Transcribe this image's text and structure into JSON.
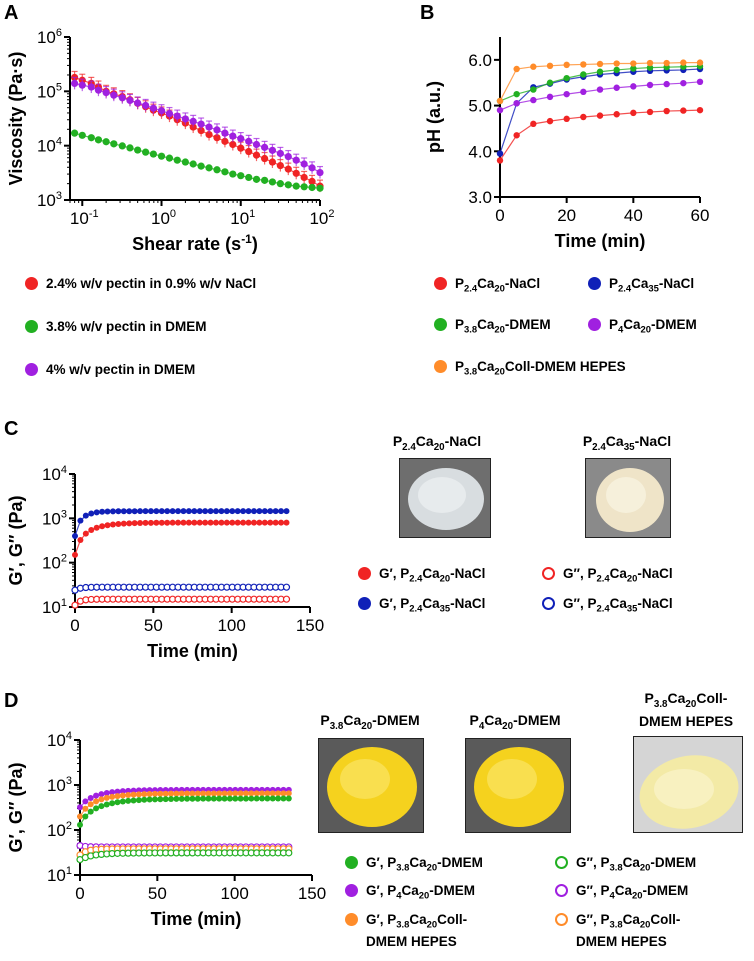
{
  "panels": {
    "A": "A",
    "B": "B",
    "C": "C",
    "D": "D"
  },
  "legend_a": [
    {
      "label": "2.4% w/v pectin in 0.9% w/v NaCl",
      "color": "#f02424"
    },
    {
      "label": "3.8% w/v pectin in DMEM",
      "color": "#22b022"
    },
    {
      "label": "4% w/v pectin in DMEM",
      "color": "#a020e0"
    }
  ],
  "legend_b": [
    {
      "pre": "P",
      "s1": "2.4",
      "mid": "Ca",
      "s2": "20",
      "post": "-NaCl",
      "color": "#f02424"
    },
    {
      "pre": "P",
      "s1": "2.4",
      "mid": "Ca",
      "s2": "35",
      "post": "-NaCl",
      "color": "#1020b8"
    },
    {
      "pre": "P",
      "s1": "3.8",
      "mid": "Ca",
      "s2": "20",
      "post": "-DMEM",
      "color": "#22b022"
    },
    {
      "pre": "P",
      "s1": "4",
      "mid": "Ca",
      "s2": "20",
      "post": "-DMEM",
      "color": "#a020e0"
    },
    {
      "pre": "P",
      "s1": "3.8",
      "mid": "Ca",
      "s2": "20",
      "post": "Coll-DMEM HEPES",
      "color": "#ff8c2a"
    }
  ],
  "legend_c": [
    {
      "prefix": "G′, ",
      "pre": "P",
      "s1": "2.4",
      "mid": "Ca",
      "s2": "20",
      "post": "-NaCl",
      "color": "#f02424",
      "filled": true
    },
    {
      "prefix": "G″, ",
      "pre": "P",
      "s1": "2.4",
      "mid": "Ca",
      "s2": "20",
      "post": "-NaCl",
      "color": "#f02424",
      "filled": false
    },
    {
      "prefix": "G′, ",
      "pre": "P",
      "s1": "2.4",
      "mid": "Ca",
      "s2": "35",
      "post": "-NaCl",
      "color": "#1020b8",
      "filled": true
    },
    {
      "prefix": "G″, ",
      "pre": "P",
      "s1": "2.4",
      "mid": "Ca",
      "s2": "35",
      "post": "-NaCl",
      "color": "#1020b8",
      "filled": false
    }
  ],
  "legend_d": [
    {
      "prefix": "G′, ",
      "pre": "P",
      "s1": "3.8",
      "mid": "Ca",
      "s2": "20",
      "post": "-DMEM",
      "line2": "",
      "color": "#22b022",
      "filled": true
    },
    {
      "prefix": "G″, ",
      "pre": "P",
      "s1": "3.8",
      "mid": "Ca",
      "s2": "20",
      "post": "-DMEM",
      "line2": "",
      "color": "#22b022",
      "filled": false
    },
    {
      "prefix": "G′, ",
      "pre": "P",
      "s1": "4",
      "mid": "Ca",
      "s2": "20",
      "post": "-DMEM",
      "line2": "",
      "color": "#a020e0",
      "filled": true
    },
    {
      "prefix": "G″, ",
      "pre": "P",
      "s1": "4",
      "mid": "Ca",
      "s2": "20",
      "post": "-DMEM",
      "line2": "",
      "color": "#a020e0",
      "filled": false
    },
    {
      "prefix": "G′, ",
      "pre": "P",
      "s1": "3.8",
      "mid": "Ca",
      "s2": "20",
      "post": "Coll-",
      "line2": "DMEM HEPES",
      "color": "#ff8c2a",
      "filled": true
    },
    {
      "prefix": "G″, ",
      "pre": "P",
      "s1": "3.8",
      "mid": "Ca",
      "s2": "20",
      "post": "Coll-",
      "line2": "DMEM HEPES",
      "color": "#ff8c2a",
      "filled": false
    }
  ],
  "photos_c": [
    {
      "pre": "P",
      "s1": "2.4",
      "mid": "Ca",
      "s2": "20",
      "post": "-NaCl",
      "line2": "",
      "color": "#d8dde0",
      "bg": "#6e6e6e"
    },
    {
      "pre": "P",
      "s1": "2.4",
      "mid": "Ca",
      "s2": "35",
      "post": "-NaCl",
      "line2": "",
      "color": "#efe4c8",
      "bg": "#8a8a8a"
    }
  ],
  "photos_d": [
    {
      "pre": "P",
      "s1": "3.8",
      "mid": "Ca",
      "s2": "20",
      "post": "-DMEM",
      "line2": "",
      "color": "#f5d21e",
      "bg": "#5a5a5a"
    },
    {
      "pre": "P",
      "s1": "4",
      "mid": "Ca",
      "s2": "20",
      "post": "-DMEM",
      "line2": "",
      "color": "#f5d21e",
      "bg": "#5a5a5a"
    },
    {
      "pre": "P",
      "s1": "3.8",
      "mid": "Ca",
      "s2": "20",
      "post": "Coll-",
      "line2": "DMEM HEPES",
      "color": "#f3eaa6",
      "bg": "#d5d5d5"
    }
  ],
  "chart_data": [
    {
      "id": "A",
      "type": "line",
      "xscale": "log",
      "yscale": "log",
      "title": "",
      "xlabel": "Shear rate (s",
      "xlabel_sup": "-1",
      "xlabel_end": ")",
      "ylabel": "Viscosity (Pa·s)",
      "xlim": [
        0.07,
        100
      ],
      "ylim": [
        1000,
        1000000
      ],
      "xticks": [
        {
          "v": 0.1,
          "b": "10",
          "e": "-1"
        },
        {
          "v": 1,
          "b": "10",
          "e": "0"
        },
        {
          "v": 10,
          "b": "10",
          "e": "1"
        },
        {
          "v": 100,
          "b": "10",
          "e": "2"
        }
      ],
      "yticks": [
        {
          "v": 1000,
          "b": "10",
          "e": "3"
        },
        {
          "v": 10000,
          "b": "10",
          "e": "4"
        },
        {
          "v": 100000,
          "b": "10",
          "e": "5"
        },
        {
          "v": 1000000,
          "b": "10",
          "e": "6"
        }
      ],
      "series": [
        {
          "name": "2.4% w/v pectin in 0.9% w/v NaCl",
          "color": "#f02424",
          "filled": true,
          "errorbars": true,
          "x": [
            0.08,
            0.1,
            0.13,
            0.16,
            0.2,
            0.25,
            0.32,
            0.4,
            0.5,
            0.63,
            0.79,
            1,
            1.26,
            1.58,
            2,
            2.51,
            3.16,
            3.98,
            5.01,
            6.31,
            7.94,
            10,
            12.6,
            15.8,
            20,
            25.1,
            31.6,
            39.8,
            50.1,
            63.1,
            79.4,
            100
          ],
          "y": [
            180000,
            160000,
            140000,
            120000,
            100000,
            90000,
            80000,
            70000,
            60000,
            52000,
            45000,
            40000,
            35000,
            30000,
            26000,
            22000,
            19000,
            16000,
            14000,
            12000,
            10500,
            9000,
            7800,
            6700,
            5800,
            5000,
            4300,
            3700,
            3100,
            2600,
            2200,
            1800
          ]
        },
        {
          "name": "3.8% w/v pectin in DMEM",
          "color": "#22b022",
          "filled": true,
          "errorbars": false,
          "x": [
            0.08,
            0.1,
            0.13,
            0.16,
            0.2,
            0.25,
            0.32,
            0.4,
            0.5,
            0.63,
            0.79,
            1,
            1.26,
            1.58,
            2,
            2.51,
            3.16,
            3.98,
            5.01,
            6.31,
            7.94,
            10,
            12.6,
            15.8,
            20,
            25.1,
            31.6,
            39.8,
            50.1,
            63.1,
            79.4,
            100
          ],
          "y": [
            17000,
            15500,
            14000,
            12800,
            11800,
            10800,
            9900,
            9100,
            8300,
            7600,
            7000,
            6400,
            5900,
            5400,
            5000,
            4600,
            4200,
            3900,
            3600,
            3300,
            3000,
            2800,
            2600,
            2400,
            2300,
            2150,
            2000,
            1900,
            1800,
            1750,
            1700,
            1650
          ]
        },
        {
          "name": "4% w/v pectin in DMEM",
          "color": "#a020e0",
          "filled": true,
          "errorbars": true,
          "x": [
            0.08,
            0.1,
            0.13,
            0.16,
            0.2,
            0.25,
            0.32,
            0.4,
            0.5,
            0.63,
            0.79,
            1,
            1.26,
            1.58,
            2,
            2.51,
            3.16,
            3.98,
            5.01,
            6.31,
            7.94,
            10,
            12.6,
            15.8,
            20,
            25.1,
            31.6,
            39.8,
            50.1,
            63.1,
            79.4,
            100
          ],
          "y": [
            140000,
            130000,
            120000,
            105000,
            95000,
            85000,
            76000,
            68000,
            61000,
            55000,
            49000,
            44000,
            39000,
            35000,
            31000,
            28000,
            25000,
            22000,
            19500,
            17000,
            15000,
            13500,
            12000,
            10500,
            9300,
            8200,
            7200,
            6300,
            5400,
            4600,
            3900,
            3200
          ]
        }
      ]
    },
    {
      "id": "B",
      "type": "line",
      "xscale": "linear",
      "yscale": "linear",
      "title": "",
      "xlabel": "Time (min)",
      "ylabel": "pH (a.u.)",
      "xlim": [
        0,
        60
      ],
      "ylim": [
        3,
        6.5
      ],
      "xticks": [
        {
          "v": 0,
          "l": "0"
        },
        {
          "v": 20,
          "l": "20"
        },
        {
          "v": 40,
          "l": "40"
        },
        {
          "v": 60,
          "l": "60"
        }
      ],
      "yticks": [
        {
          "v": 3,
          "l": "3.0"
        },
        {
          "v": 4,
          "l": "4.0"
        },
        {
          "v": 5,
          "l": "5.0"
        },
        {
          "v": 6,
          "l": "6.0"
        }
      ],
      "series": [
        {
          "name": "P2.4Ca20-NaCl",
          "color": "#f02424",
          "filled": true,
          "x": [
            0,
            5,
            10,
            15,
            20,
            25,
            30,
            35,
            40,
            45,
            50,
            55,
            60
          ],
          "y": [
            3.8,
            4.35,
            4.6,
            4.66,
            4.71,
            4.75,
            4.78,
            4.81,
            4.84,
            4.86,
            4.88,
            4.89,
            4.9
          ]
        },
        {
          "name": "P2.4Ca35-NaCl",
          "color": "#1020b8",
          "filled": true,
          "x": [
            0,
            5,
            10,
            15,
            20,
            25,
            30,
            35,
            40,
            45,
            50,
            55,
            60
          ],
          "y": [
            3.95,
            5.05,
            5.4,
            5.48,
            5.57,
            5.63,
            5.68,
            5.71,
            5.74,
            5.76,
            5.77,
            5.78,
            5.8
          ]
        },
        {
          "name": "P3.8Ca20-DMEM",
          "color": "#22b022",
          "filled": true,
          "x": [
            0,
            5,
            10,
            15,
            20,
            25,
            30,
            35,
            40,
            45,
            50,
            55,
            60
          ],
          "y": [
            5.1,
            5.25,
            5.35,
            5.5,
            5.6,
            5.68,
            5.74,
            5.78,
            5.81,
            5.83,
            5.84,
            5.85,
            5.86
          ]
        },
        {
          "name": "P4Ca20-DMEM",
          "color": "#a020e0",
          "filled": true,
          "x": [
            0,
            5,
            10,
            15,
            20,
            25,
            30,
            35,
            40,
            45,
            50,
            55,
            60
          ],
          "y": [
            4.9,
            5.05,
            5.12,
            5.19,
            5.25,
            5.3,
            5.35,
            5.39,
            5.42,
            5.45,
            5.47,
            5.49,
            5.52
          ]
        },
        {
          "name": "P3.8Ca20Coll-DMEM HEPES",
          "color": "#ff8c2a",
          "filled": true,
          "x": [
            0,
            5,
            10,
            15,
            20,
            25,
            30,
            35,
            40,
            45,
            50,
            55,
            60
          ],
          "y": [
            5.1,
            5.8,
            5.85,
            5.87,
            5.89,
            5.9,
            5.91,
            5.92,
            5.92,
            5.93,
            5.93,
            5.94,
            5.94
          ]
        }
      ]
    },
    {
      "id": "C",
      "type": "scatter",
      "xscale": "linear",
      "yscale": "log",
      "title": "",
      "xlabel": "Time (min)",
      "ylabel": "G′, G″ (Pa)",
      "xlim": [
        0,
        150
      ],
      "ylim": [
        10,
        10000
      ],
      "xticks": [
        {
          "v": 0,
          "l": "0"
        },
        {
          "v": 50,
          "l": "50"
        },
        {
          "v": 100,
          "l": "100"
        },
        {
          "v": 150,
          "l": "150"
        }
      ],
      "yticks": [
        {
          "v": 10,
          "b": "10",
          "e": "1"
        },
        {
          "v": 100,
          "b": "10",
          "e": "2"
        },
        {
          "v": 1000,
          "b": "10",
          "e": "3"
        },
        {
          "v": 10000,
          "b": "10",
          "e": "4"
        }
      ],
      "series": [
        {
          "name": "G′, P2.4Ca35-NaCl",
          "color": "#1020b8",
          "filled": true,
          "kind": "rise",
          "start": 400,
          "plateau": 1450,
          "rate": 0.18
        },
        {
          "name": "G′, P2.4Ca20-NaCl",
          "color": "#f02424",
          "filled": true,
          "kind": "rise",
          "start": 150,
          "plateau": 800,
          "rate": 0.09
        },
        {
          "name": "G″, P2.4Ca35-NaCl",
          "color": "#1020b8",
          "filled": false,
          "kind": "flat",
          "start": 24,
          "plateau": 28,
          "rate": 0.3
        },
        {
          "name": "G″, P2.4Ca20-NaCl",
          "color": "#f02424",
          "filled": false,
          "kind": "flat",
          "start": 11,
          "plateau": 15,
          "rate": 0.3
        }
      ]
    },
    {
      "id": "D",
      "type": "scatter",
      "xscale": "linear",
      "yscale": "log",
      "title": "",
      "xlabel": "Time (min)",
      "ylabel": "G′, G″ (Pa)",
      "xlim": [
        0,
        150
      ],
      "ylim": [
        10,
        10000
      ],
      "xticks": [
        {
          "v": 0,
          "l": "0"
        },
        {
          "v": 50,
          "l": "50"
        },
        {
          "v": 100,
          "l": "100"
        },
        {
          "v": 150,
          "l": "150"
        }
      ],
      "yticks": [
        {
          "v": 10,
          "b": "10",
          "e": "1"
        },
        {
          "v": 100,
          "b": "10",
          "e": "2"
        },
        {
          "v": 1000,
          "b": "10",
          "e": "3"
        },
        {
          "v": 10000,
          "b": "10",
          "e": "4"
        }
      ],
      "series": [
        {
          "name": "G′, P4Ca20-DMEM",
          "color": "#a020e0",
          "filled": true,
          "kind": "rise",
          "start": 320,
          "plateau": 780,
          "rate": 0.08
        },
        {
          "name": "G′, P3.8Ca20Coll-DMEM HEPES",
          "color": "#ff8c2a",
          "filled": true,
          "kind": "rise",
          "start": 200,
          "plateau": 650,
          "rate": 0.07
        },
        {
          "name": "G′, P3.8Ca20-DMEM",
          "color": "#22b022",
          "filled": true,
          "kind": "rise",
          "start": 130,
          "plateau": 500,
          "rate": 0.06
        },
        {
          "name": "G″, P4Ca20-DMEM",
          "color": "#a020e0",
          "filled": false,
          "kind": "flat",
          "start": 45,
          "plateau": 42,
          "rate": 0.3
        },
        {
          "name": "G″, P3.8Ca20Coll-DMEM HEPES",
          "color": "#ff8c2a",
          "filled": false,
          "kind": "flat",
          "start": 28,
          "plateau": 38,
          "rate": 0.2
        },
        {
          "name": "G″, P3.8Ca20-DMEM",
          "color": "#22b022",
          "filled": false,
          "kind": "flat",
          "start": 22,
          "plateau": 31,
          "rate": 0.1
        }
      ]
    }
  ]
}
